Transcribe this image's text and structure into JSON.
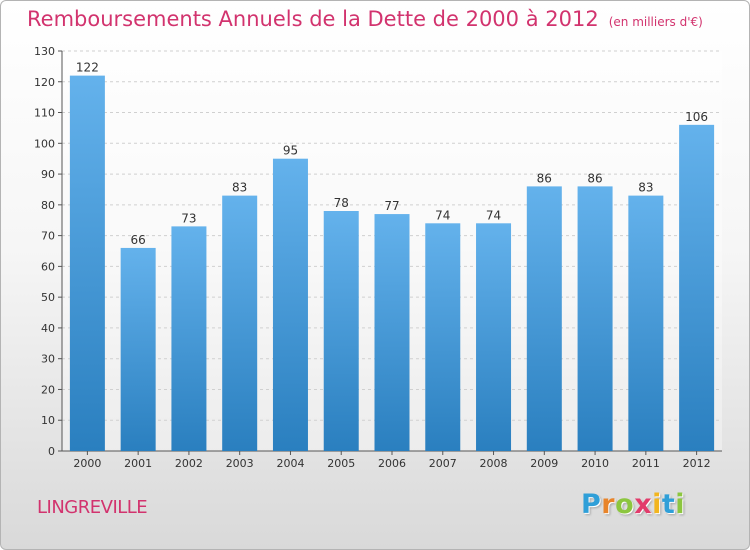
{
  "chart_data": {
    "type": "bar",
    "title": "Remboursements Annuels de la Dette de 2000 à 2012",
    "unit_label": "(en milliers d'€)",
    "categories": [
      "2000",
      "2001",
      "2002",
      "2003",
      "2004",
      "2005",
      "2006",
      "2007",
      "2008",
      "2009",
      "2010",
      "2011",
      "2012"
    ],
    "values": [
      122,
      66,
      73,
      83,
      95,
      78,
      77,
      74,
      74,
      86,
      86,
      83,
      106
    ],
    "ylim": [
      0,
      130
    ],
    "yticks": [
      0,
      10,
      20,
      30,
      40,
      50,
      60,
      70,
      80,
      90,
      100,
      110,
      120,
      130
    ],
    "xlabel": "",
    "ylabel": "",
    "grid": true,
    "colors": {
      "bar_light": "#64b2ec",
      "bar_dark": "#2a7fbf",
      "title": "#d2336e"
    }
  },
  "place_name": "LINGREVILLE",
  "logo": {
    "letters": [
      "P",
      "r",
      "o",
      "x",
      "i",
      "t",
      "i"
    ],
    "colors": [
      "#2f9fd8",
      "#e8842a",
      "#8cc63f",
      "#e23b6b",
      "#f2b51e",
      "#2f9fd8",
      "#8cc63f"
    ]
  }
}
